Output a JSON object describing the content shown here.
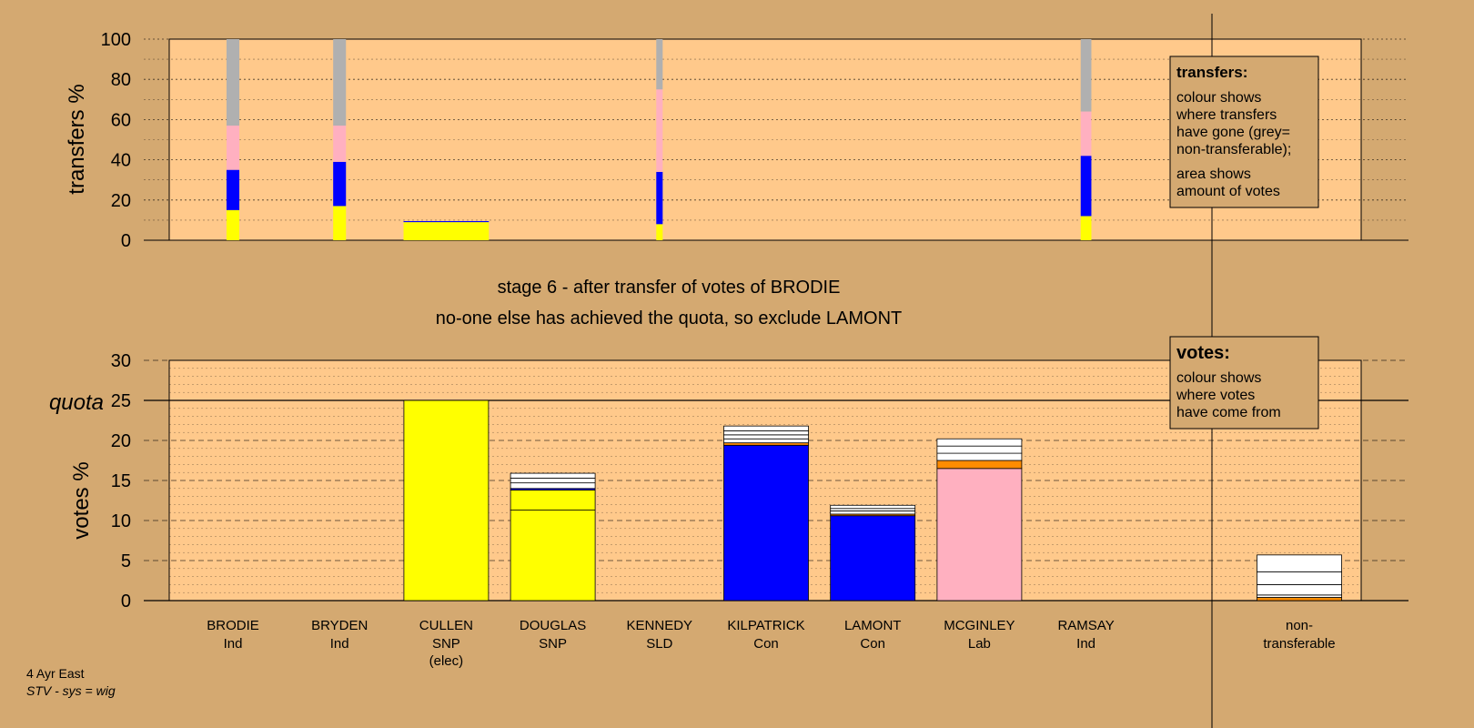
{
  "colors": {
    "background": "#d4a971",
    "plot_area": "#ffc98b",
    "Ind": "#ffff00",
    "SNP": "#ffff00",
    "SLD": "#ffff00",
    "Con": "#0000ff",
    "Lab": "#ffb0c0",
    "nontransferable": "#b0b0b0",
    "white": "#ffffff",
    "orange": "#ff8c00"
  },
  "chart_data": [
    {
      "type": "bar",
      "ylabel": "transfers %",
      "ylim": [
        0,
        100
      ],
      "yticks": [
        0,
        20,
        40,
        60,
        80,
        100
      ],
      "bars": [
        {
          "candidate": "BRODIE",
          "slot": 0,
          "width": 0.12,
          "segments": [
            {
              "color": "Ind",
              "value": 15
            },
            {
              "color": "Con",
              "value": 20
            },
            {
              "color": "Lab",
              "value": 22
            },
            {
              "color": "nontransferable",
              "value": 43
            }
          ]
        },
        {
          "candidate": "BRYDEN",
          "slot": 1,
          "width": 0.12,
          "segments": [
            {
              "color": "Ind",
              "value": 17
            },
            {
              "color": "Con",
              "value": 22
            },
            {
              "color": "Lab",
              "value": 18
            },
            {
              "color": "nontransferable",
              "value": 43
            }
          ]
        },
        {
          "candidate": "CULLEN",
          "slot": 2,
          "width": 0.8,
          "segments": [
            {
              "color": "Ind",
              "value": 9
            },
            {
              "color": "Con",
              "value": 0.5
            }
          ]
        },
        {
          "candidate": "KENNEDY",
          "slot": 4,
          "width": 0.06,
          "segments": [
            {
              "color": "Ind",
              "value": 8
            },
            {
              "color": "Con",
              "value": 26
            },
            {
              "color": "Lab",
              "value": 41
            },
            {
              "color": "nontransferable",
              "value": 25
            }
          ]
        },
        {
          "candidate": "RAMSAY",
          "slot": 8,
          "width": 0.1,
          "segments": [
            {
              "color": "Ind",
              "value": 12
            },
            {
              "color": "Con",
              "value": 30
            },
            {
              "color": "Lab",
              "value": 22
            },
            {
              "color": "nontransferable",
              "value": 36
            }
          ]
        }
      ]
    },
    {
      "type": "bar",
      "ylabel": "votes %",
      "ylim": [
        0,
        30
      ],
      "yticks": [
        0,
        5,
        10,
        15,
        20,
        25,
        30
      ],
      "quota": 25,
      "quota_label": "quota",
      "categories": [
        {
          "name": "BRODIE",
          "party": "Ind",
          "note": ""
        },
        {
          "name": "BRYDEN",
          "party": "Ind",
          "note": ""
        },
        {
          "name": "CULLEN",
          "party": "SNP",
          "note": "(elec)"
        },
        {
          "name": "DOUGLAS",
          "party": "SNP",
          "note": ""
        },
        {
          "name": "KENNEDY",
          "party": "SLD",
          "note": ""
        },
        {
          "name": "KILPATRICK",
          "party": "Con",
          "note": ""
        },
        {
          "name": "LAMONT",
          "party": "Con",
          "note": ""
        },
        {
          "name": "MCGINLEY",
          "party": "Lab",
          "note": ""
        },
        {
          "name": "RAMSAY",
          "party": "Ind",
          "note": ""
        }
      ],
      "nontransferable_label": [
        "non-",
        "transferable"
      ],
      "votes": [
        {
          "candidate": "BRODIE",
          "slot": 0,
          "segments": []
        },
        {
          "candidate": "BRYDEN",
          "slot": 1,
          "segments": []
        },
        {
          "candidate": "CULLEN",
          "slot": 2,
          "segments": [
            {
              "color": "SNP",
              "value": 25
            }
          ]
        },
        {
          "candidate": "DOUGLAS",
          "slot": 3,
          "segments": [
            {
              "color": "SNP",
              "value": 11.3
            },
            {
              "color": "SNP",
              "value": 2.5
            },
            {
              "color": "Con",
              "value": 0.2
            },
            {
              "color": "white",
              "value": 0.7
            },
            {
              "color": "white",
              "value": 0.6
            },
            {
              "color": "white",
              "value": 0.6
            }
          ]
        },
        {
          "candidate": "KENNEDY",
          "slot": 4,
          "segments": []
        },
        {
          "candidate": "KILPATRICK",
          "slot": 5,
          "segments": [
            {
              "color": "Con",
              "value": 19.4
            },
            {
              "color": "orange",
              "value": 0.3
            },
            {
              "color": "white",
              "value": 0.5
            },
            {
              "color": "white",
              "value": 0.5
            },
            {
              "color": "white",
              "value": 0.5
            },
            {
              "color": "white",
              "value": 0.6
            }
          ]
        },
        {
          "candidate": "LAMONT",
          "slot": 6,
          "segments": [
            {
              "color": "Con",
              "value": 10.6
            },
            {
              "color": "orange",
              "value": 0.2
            },
            {
              "color": "white",
              "value": 0.4
            },
            {
              "color": "white",
              "value": 0.3
            },
            {
              "color": "white",
              "value": 0.4
            }
          ]
        },
        {
          "candidate": "MCGINLEY",
          "slot": 7,
          "segments": [
            {
              "color": "Lab",
              "value": 16.5
            },
            {
              "color": "orange",
              "value": 1
            },
            {
              "color": "white",
              "value": 0.9
            },
            {
              "color": "white",
              "value": 0.9
            },
            {
              "color": "white",
              "value": 0.9
            }
          ]
        },
        {
          "candidate": "RAMSAY",
          "slot": 8,
          "segments": []
        },
        {
          "candidate": "non-transferable",
          "slot": 10,
          "segments": [
            {
              "color": "orange",
              "value": 0.4
            },
            {
              "color": "white",
              "value": 0.3
            },
            {
              "color": "white",
              "value": 1.3
            },
            {
              "color": "white",
              "value": 1.6
            },
            {
              "color": "white",
              "value": 2.1
            }
          ]
        }
      ]
    }
  ],
  "stage": {
    "line1": "stage 6 - after transfer of votes of BRODIE",
    "line2": "no-one else has achieved the quota, so exclude LAMONT"
  },
  "legend_transfers": {
    "title": "transfers:",
    "lines": [
      "colour shows",
      "where transfers",
      "have gone (grey=",
      "non-transferable);",
      "area shows",
      "amount of votes"
    ]
  },
  "legend_votes": {
    "title": "votes:",
    "lines": [
      "colour shows",
      "where votes",
      "have come from"
    ]
  },
  "footer": {
    "line1": "4 Ayr East",
    "line2": "STV - sys = wig"
  }
}
